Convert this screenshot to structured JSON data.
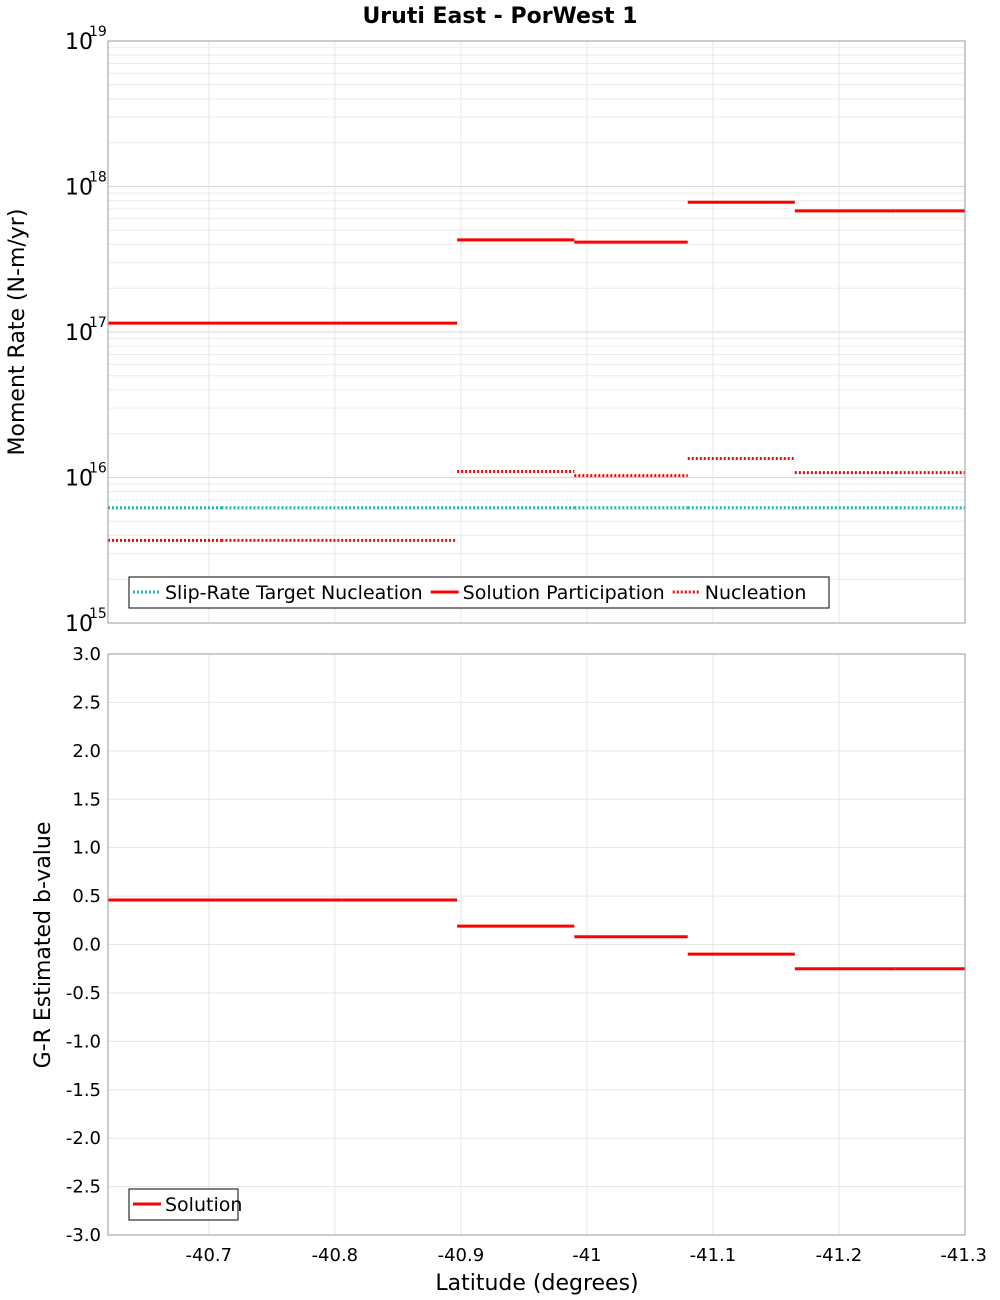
{
  "title": "Uruti East - PorWest 1",
  "chart_data": [
    {
      "type": "line",
      "ylabel": "Moment Rate (N-m/yr)",
      "yscale": "log",
      "ylim": [
        1000000000000000.0,
        1e+19
      ],
      "xlim": [
        -40.62,
        -41.3
      ],
      "y_ticks": [
        {
          "base": "10",
          "exp": "15"
        },
        {
          "base": "10",
          "exp": "16"
        },
        {
          "base": "10",
          "exp": "17"
        },
        {
          "base": "10",
          "exp": "18"
        },
        {
          "base": "10",
          "exp": "19"
        }
      ],
      "grid": true,
      "legend": {
        "position": "bottom-left",
        "entries": [
          {
            "name": "Slip-Rate Target Nucleation",
            "style": "dotted",
            "color": "#1fb5b5"
          },
          {
            "name": "Solution Participation",
            "style": "solid",
            "color": "#ff0000"
          },
          {
            "name": "Nucleation",
            "style": "dotted",
            "color": "#ff0000"
          }
        ]
      },
      "series": [
        {
          "name": "Slip-Rate Target Nucleation",
          "style": "dotted",
          "color": "#1fb5b5",
          "segments": [
            {
              "x": [
                -40.62,
                -40.71
              ],
              "y": 6200000000000000.0
            },
            {
              "x": [
                -40.71,
                -40.805
              ],
              "y": 6200000000000000.0
            },
            {
              "x": [
                -40.805,
                -40.897
              ],
              "y": 6200000000000000.0
            },
            {
              "x": [
                -40.897,
                -40.99
              ],
              "y": 6200000000000000.0
            },
            {
              "x": [
                -40.99,
                -41.08
              ],
              "y": 6200000000000000.0
            },
            {
              "x": [
                -41.08,
                -41.165
              ],
              "y": 6200000000000000.0
            },
            {
              "x": [
                -41.165,
                -41.245
              ],
              "y": 6200000000000000.0
            },
            {
              "x": [
                -41.245,
                -41.3
              ],
              "y": 6200000000000000.0
            }
          ]
        },
        {
          "name": "Solution Participation",
          "style": "solid",
          "color": "#ff0000",
          "segments": [
            {
              "x": [
                -40.62,
                -40.71
              ],
              "y": 1.15e+17
            },
            {
              "x": [
                -40.71,
                -40.805
              ],
              "y": 1.15e+17
            },
            {
              "x": [
                -40.805,
                -40.897
              ],
              "y": 1.15e+17
            },
            {
              "x": [
                -40.897,
                -40.99
              ],
              "y": 4.3e+17
            },
            {
              "x": [
                -40.99,
                -41.08
              ],
              "y": 4.15e+17
            },
            {
              "x": [
                -41.08,
                -41.165
              ],
              "y": 7.8e+17
            },
            {
              "x": [
                -41.165,
                -41.245
              ],
              "y": 6.8e+17
            },
            {
              "x": [
                -41.245,
                -41.3
              ],
              "y": 6.8e+17
            }
          ]
        },
        {
          "name": "Nucleation",
          "style": "dotted",
          "color": "#ff0000",
          "segments": [
            {
              "x": [
                -40.62,
                -40.71
              ],
              "y": 3700000000000000.0
            },
            {
              "x": [
                -40.71,
                -40.805
              ],
              "y": 3700000000000000.0
            },
            {
              "x": [
                -40.805,
                -40.897
              ],
              "y": 3700000000000000.0
            },
            {
              "x": [
                -40.897,
                -40.99
              ],
              "y": 1.1e+16
            },
            {
              "x": [
                -40.99,
                -41.08
              ],
              "y": 1.03e+16
            },
            {
              "x": [
                -41.08,
                -41.165
              ],
              "y": 1.35e+16
            },
            {
              "x": [
                -41.165,
                -41.245
              ],
              "y": 1.08e+16
            },
            {
              "x": [
                -41.245,
                -41.3
              ],
              "y": 1.08e+16
            }
          ]
        }
      ]
    },
    {
      "type": "line",
      "xlabel": "Latitude (degrees)",
      "ylabel": "G-R Estimated b-value",
      "ylim": [
        -3.0,
        3.0
      ],
      "xlim": [
        -40.62,
        -41.3
      ],
      "x_ticks": [
        -40.7,
        -40.8,
        -40.9,
        -41,
        -41.1,
        -41.2,
        -41.3
      ],
      "x_tick_labels": [
        "-40.7",
        "-40.8",
        "-40.9",
        "-41",
        "-41.1",
        "-41.2",
        "-41.3"
      ],
      "y_ticks": [
        3.0,
        2.5,
        2.0,
        1.5,
        1.0,
        0.5,
        0.0,
        -0.5,
        -1.0,
        -1.5,
        -2.0,
        -2.5,
        -3.0
      ],
      "y_tick_labels": [
        "3.0",
        "2.5",
        "2.0",
        "1.5",
        "1.0",
        "0.5",
        "0.0",
        "-0.5",
        "-1.0",
        "-1.5",
        "-2.0",
        "-2.5",
        "-3.0"
      ],
      "grid": true,
      "legend": {
        "position": "bottom-left",
        "entries": [
          {
            "name": "Solution",
            "style": "solid",
            "color": "#ff0000"
          }
        ]
      },
      "series": [
        {
          "name": "Solution",
          "style": "solid",
          "color": "#ff0000",
          "segments": [
            {
              "x": [
                -40.62,
                -40.71
              ],
              "y": 0.46
            },
            {
              "x": [
                -40.71,
                -40.805
              ],
              "y": 0.46
            },
            {
              "x": [
                -40.805,
                -40.897
              ],
              "y": 0.46
            },
            {
              "x": [
                -40.897,
                -40.99
              ],
              "y": 0.19
            },
            {
              "x": [
                -40.99,
                -41.08
              ],
              "y": 0.08
            },
            {
              "x": [
                -41.08,
                -41.165
              ],
              "y": -0.1
            },
            {
              "x": [
                -41.165,
                -41.245
              ],
              "y": -0.25
            },
            {
              "x": [
                -41.245,
                -41.3
              ],
              "y": -0.25
            }
          ]
        }
      ]
    }
  ]
}
